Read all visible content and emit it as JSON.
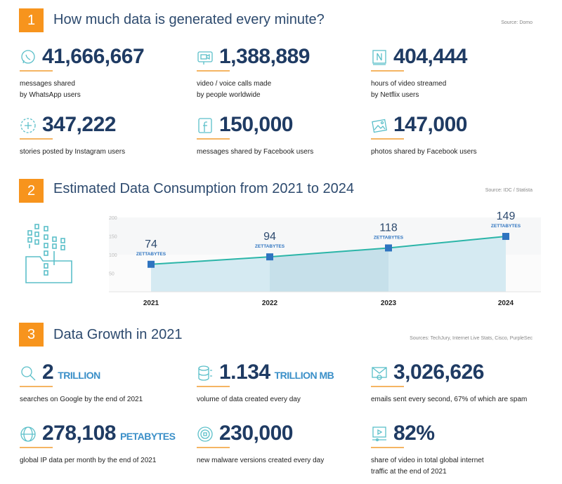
{
  "section1": {
    "number": "1",
    "title": "How much data is generated every minute?",
    "source": "Source: Domo",
    "stats": [
      {
        "icon": "whatsapp-icon",
        "value": "41,666,667",
        "desc1": "messages shared",
        "desc2": "by WhatsApp users"
      },
      {
        "icon": "video-call-icon",
        "value": "1,388,889",
        "desc1": "video / voice calls made",
        "desc2": "by people worldwide"
      },
      {
        "icon": "netflix-icon",
        "value": "404,444",
        "desc1": "hours of video streamed",
        "desc2": "by Netflix users"
      },
      {
        "icon": "instagram-story-icon",
        "value": "347,222",
        "desc1": "stories posted by Instagram users"
      },
      {
        "icon": "facebook-icon",
        "value": "150,000",
        "desc1": "messages shared by Facebook users"
      },
      {
        "icon": "photo-icon",
        "value": "147,000",
        "desc1": "photos shared by Facebook users"
      }
    ]
  },
  "section2": {
    "number": "2",
    "title": "Estimated Data Consumption from 2021 to 2024",
    "source": "Source: IDC / Statista"
  },
  "chart_data": {
    "type": "area",
    "categories": [
      "2021",
      "2022",
      "2023",
      "2024"
    ],
    "values": [
      74,
      94,
      118,
      149
    ],
    "unit_label": "ZETTABYTES",
    "yticks": [
      "50",
      "100",
      "150",
      "200"
    ],
    "ylim": [
      0,
      200
    ],
    "grid": true,
    "colors": {
      "line": "#2bb5a8",
      "marker": "#2f74c0",
      "fill": "#d5eaf2"
    }
  },
  "section3": {
    "number": "3",
    "title": "Data Growth in 2021",
    "source": "Sources: TechJury, Internet Live Stats, Cisco, PurpleSec",
    "stats": [
      {
        "icon": "search-icon",
        "value": "2",
        "unit": "TRILLION",
        "desc1": "searches on Google by the end of 2021"
      },
      {
        "icon": "database-icon",
        "value": "1.134",
        "unit": "TRILLION MB",
        "desc1": "volume of data created every day"
      },
      {
        "icon": "email-icon",
        "value": "3,026,626",
        "desc1": "emails sent every second, 67% of which are spam"
      },
      {
        "icon": "globe-icon",
        "value": "278,108",
        "unit": "PETABYTES",
        "desc1": "global IP data per month by the end of 2021"
      },
      {
        "icon": "malware-icon",
        "value": "230,000",
        "desc1": "new malware versions created every day"
      },
      {
        "icon": "video-player-icon",
        "value": "82%",
        "desc1": "share of video in total global internet",
        "desc2": "traffic at the end of 2021"
      }
    ]
  },
  "colors": {
    "accent": "#f7941d",
    "heading": "#2d4a6e",
    "number": "#1f3b63",
    "unit": "#3a8fc8",
    "icon": "#5bbfc9"
  }
}
